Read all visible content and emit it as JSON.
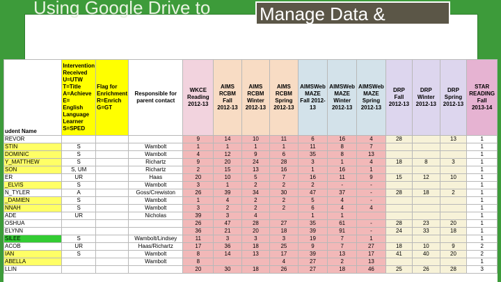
{
  "header": {
    "title_plain": "Using Google Drive to",
    "title_box": "Manage Data &"
  },
  "table": {
    "columns": [
      "udent Name",
      "Intervention\nReceived\nU=UTW\nT=Title\nA=Achieve\nE=\nEnglish\nLanguage\nLearner\nS=SPED",
      "Flag for\nEnrichment\nR=Enrich\nG=GT",
      "Responsible for\nparent contact",
      "WKCE\nReading\n2012-13",
      "AIMS\nRCBM\nFall\n2012-13",
      "AIMS\nRCBM\nWinter\n2012-13",
      "AIMS\nRCBM\nSpring\n2012-13",
      "AIMSWeb\nMAZE\nFall 2012-\n13",
      "AIMSWeb\nMAZE\nWinter\n2012-13",
      "AIMSWeb\nMAZE\nSpring\n2012-13",
      "DRP\nFall\n2012-13",
      "DRP\nWinter\n2012-13",
      "DRP\nSpring\n2012-13",
      "STAR\nREADING\nFall\n2013-14"
    ],
    "name_colors": [
      "#ffffff",
      "#ffff66",
      "#ffff66",
      "#ffff66",
      "#ffff66",
      "#ffffff",
      "#ffff66",
      "#ffffff",
      "#ffff66",
      "#ffff66",
      "#ffffff",
      "#ffffff",
      "#ffffff",
      "#33cc33",
      "#ffffff",
      "#ffff66",
      "#ffff66",
      "#ffffff"
    ],
    "rows": [
      [
        "REVOR",
        "",
        "",
        "",
        "9",
        "14",
        "10",
        "11",
        "6",
        "16",
        "4",
        "28",
        "",
        "13",
        "1"
      ],
      [
        "STIN",
        "S",
        "",
        "Wambolt",
        "1",
        "1",
        "1",
        "1",
        "11",
        "8",
        "7",
        "",
        "",
        "",
        "1"
      ],
      [
        "DOMINIC",
        "S",
        "",
        "Wambolt",
        "4",
        "12",
        "9",
        "6",
        "35",
        "8",
        "13",
        "",
        "",
        "",
        "1"
      ],
      [
        "Y_MATTHEW",
        "S",
        "",
        "Richartz",
        "9",
        "20",
        "24",
        "28",
        "3",
        "1",
        "4",
        "18",
        "8",
        "3",
        "1"
      ],
      [
        "SON",
        "S, UM",
        "",
        "Richartz",
        "2",
        "15",
        "13",
        "16",
        "1",
        "16",
        "1",
        "",
        "",
        "",
        "1"
      ],
      [
        "ER",
        "UR",
        "",
        "Haas",
        "20",
        "10",
        "5",
        "7",
        "16",
        "11",
        "9",
        "15",
        "12",
        "10",
        "1"
      ],
      [
        "_ELVIS",
        "S",
        "",
        "Wambolt",
        "3",
        "1",
        "2",
        "2",
        "2",
        "-",
        "-",
        "",
        "",
        "",
        "1"
      ],
      [
        "N_TYLER",
        "A",
        "",
        "Goss/Crewiston",
        "26",
        "39",
        "34",
        "30",
        "47",
        "37",
        "-",
        "28",
        "18",
        "2",
        "1"
      ],
      [
        "_DAMIEN",
        "S",
        "",
        "Wambolt",
        "1",
        "4",
        "2",
        "2",
        "5",
        "4",
        "-",
        "",
        "",
        "",
        "1"
      ],
      [
        "NNAH",
        "S",
        "",
        "Wambolt",
        "3",
        "2",
        "2",
        "2",
        "6",
        "4",
        "4",
        "",
        "",
        "",
        "1"
      ],
      [
        "ADE",
        "UR",
        "",
        "Nicholas",
        "39",
        "3",
        "4",
        "",
        "1",
        "1",
        "",
        "",
        "",
        "",
        "1"
      ],
      [
        "OSHUA",
        "",
        "",
        "",
        "26",
        "47",
        "28",
        "27",
        "35",
        "61",
        "-",
        "28",
        "23",
        "20",
        "1"
      ],
      [
        "ELYNN",
        "",
        "",
        "",
        "36",
        "21",
        "20",
        "18",
        "39",
        "91",
        "-",
        "24",
        "33",
        "18",
        "1"
      ],
      [
        "SILEE",
        "S",
        "",
        "Wambolt/Lindsey",
        "11",
        "3",
        "3",
        "3",
        "19",
        "7",
        "1",
        "",
        "",
        "",
        "1"
      ],
      [
        "ACOB",
        "UR",
        "",
        "Haas/Richartz",
        "17",
        "36",
        "18",
        "25",
        "9",
        "7",
        "27",
        "18",
        "10",
        "9",
        "2"
      ],
      [
        "IAN",
        "S",
        "",
        "Wambolt",
        "8",
        "14",
        "13",
        "17",
        "39",
        "13",
        "17",
        "41",
        "40",
        "20",
        "2"
      ],
      [
        "ABELLA",
        "",
        "",
        "Wambolt",
        "8",
        "",
        "",
        "4",
        "27",
        "2",
        "13",
        "",
        "",
        "",
        "1"
      ],
      [
        "LLIN",
        "",
        "",
        "",
        "20",
        "30",
        "18",
        "26",
        "27",
        "18",
        "46",
        "25",
        "26",
        "28",
        "3"
      ]
    ]
  }
}
